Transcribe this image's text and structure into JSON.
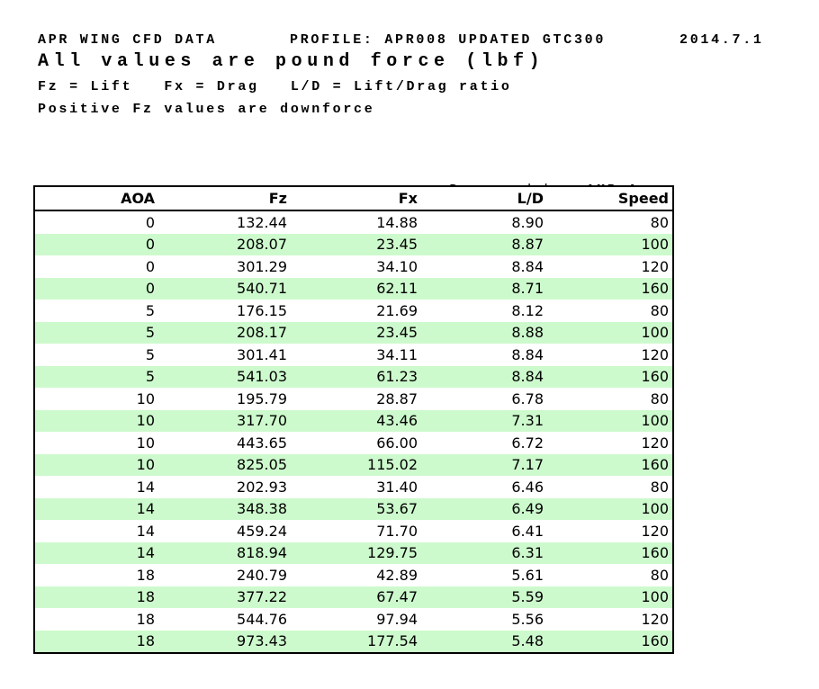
{
  "header": {
    "title": "APR WING CFD DATA",
    "profile": "PROFILE: APR008 UPDATED GTC300",
    "date": "2014.7.1",
    "units_note": "All values are pound force (lbf)",
    "legend": "Fz = Lift   Fx = Drag   L/D = Lift/Drag ratio",
    "downforce_note": "Positive Fz values are downforce"
  },
  "prepared_by": {
    "label": "Prepared by: ",
    "value": "AMB Aero"
  },
  "table": {
    "columns": [
      "AOA",
      "Fz",
      "Fx",
      "L/D",
      "Speed"
    ],
    "rows": [
      [
        "0",
        "132.44",
        "14.88",
        "8.90",
        "80"
      ],
      [
        "0",
        "208.07",
        "23.45",
        "8.87",
        "100"
      ],
      [
        "0",
        "301.29",
        "34.10",
        "8.84",
        "120"
      ],
      [
        "0",
        "540.71",
        "62.11",
        "8.71",
        "160"
      ],
      [
        "5",
        "176.15",
        "21.69",
        "8.12",
        "80"
      ],
      [
        "5",
        "208.17",
        "23.45",
        "8.88",
        "100"
      ],
      [
        "5",
        "301.41",
        "34.11",
        "8.84",
        "120"
      ],
      [
        "5",
        "541.03",
        "61.23",
        "8.84",
        "160"
      ],
      [
        "10",
        "195.79",
        "28.87",
        "6.78",
        "80"
      ],
      [
        "10",
        "317.70",
        "43.46",
        "7.31",
        "100"
      ],
      [
        "10",
        "443.65",
        "66.00",
        "6.72",
        "120"
      ],
      [
        "10",
        "825.05",
        "115.02",
        "7.17",
        "160"
      ],
      [
        "14",
        "202.93",
        "31.40",
        "6.46",
        "80"
      ],
      [
        "14",
        "348.38",
        "53.67",
        "6.49",
        "100"
      ],
      [
        "14",
        "459.24",
        "71.70",
        "6.41",
        "120"
      ],
      [
        "14",
        "818.94",
        "129.75",
        "6.31",
        "160"
      ],
      [
        "18",
        "240.79",
        "42.89",
        "5.61",
        "80"
      ],
      [
        "18",
        "377.22",
        "67.47",
        "5.59",
        "100"
      ],
      [
        "18",
        "544.76",
        "97.94",
        "5.56",
        "120"
      ],
      [
        "18",
        "973.43",
        "177.54",
        "5.48",
        "160"
      ]
    ]
  },
  "colors": {
    "row_alt_green": "#cdfacd",
    "border": "#000000",
    "text": "#000000",
    "background": "#ffffff"
  }
}
